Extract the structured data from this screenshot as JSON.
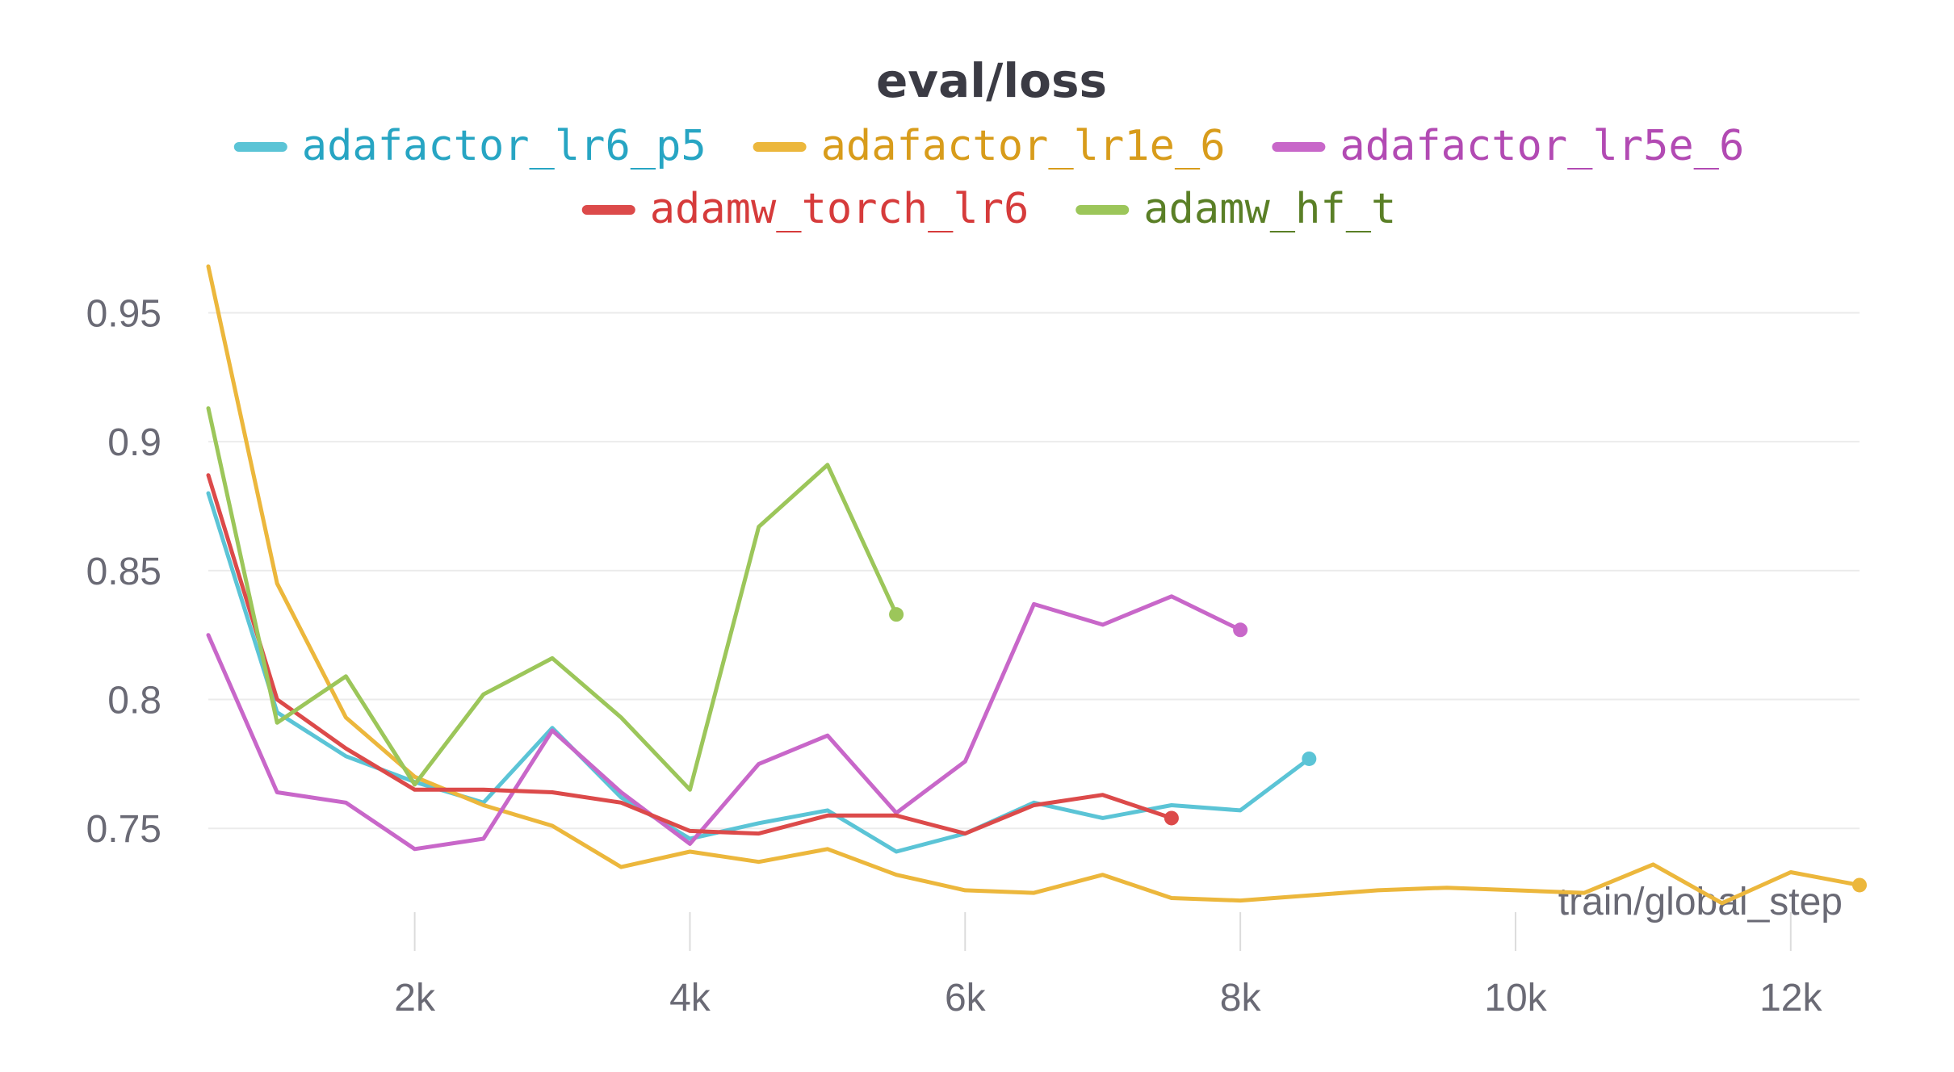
{
  "chart_data": {
    "type": "line",
    "title": "eval/loss",
    "xlabel": "train/global_step",
    "ylabel": "",
    "xlim": [
      500,
      12500
    ],
    "ylim": [
      0.715,
      0.968
    ],
    "x_ticks": [
      {
        "value": 2000,
        "label": "2k"
      },
      {
        "value": 4000,
        "label": "4k"
      },
      {
        "value": 6000,
        "label": "6k"
      },
      {
        "value": 8000,
        "label": "8k"
      },
      {
        "value": 10000,
        "label": "10k"
      },
      {
        "value": 12000,
        "label": "12k"
      }
    ],
    "y_ticks": [
      {
        "value": 0.75,
        "label": "0.75"
      },
      {
        "value": 0.8,
        "label": "0.8"
      },
      {
        "value": 0.85,
        "label": "0.85"
      },
      {
        "value": 0.9,
        "label": "0.9"
      },
      {
        "value": 0.95,
        "label": "0.95"
      }
    ],
    "grid": true,
    "legend_position": "top",
    "series": [
      {
        "name": "adafactor_lr6_p5",
        "color": "#5bc4d6",
        "text_color": "#27a5c3",
        "x": [
          500,
          1000,
          1500,
          2000,
          2500,
          3000,
          3500,
          4000,
          4500,
          5000,
          5500,
          6000,
          6500,
          7000,
          7500,
          8000,
          8500
        ],
        "y": [
          0.88,
          0.795,
          0.778,
          0.768,
          0.76,
          0.789,
          0.762,
          0.746,
          0.752,
          0.757,
          0.741,
          0.748,
          0.76,
          0.754,
          0.759,
          0.757,
          0.777
        ]
      },
      {
        "name": "adafactor_lr1e_6",
        "color": "#ecb73c",
        "text_color": "#d89c1b",
        "x": [
          500,
          1000,
          1500,
          2000,
          2500,
          3000,
          3500,
          4000,
          4500,
          5000,
          5500,
          6000,
          6500,
          7000,
          7500,
          8000,
          8500,
          9000,
          9500,
          10000,
          10500,
          11000,
          11500,
          12000,
          12500
        ],
        "y": [
          0.968,
          0.845,
          0.793,
          0.77,
          0.759,
          0.751,
          0.735,
          0.741,
          0.737,
          0.742,
          0.732,
          0.726,
          0.725,
          0.732,
          0.723,
          0.722,
          0.724,
          0.726,
          0.727,
          0.726,
          0.725,
          0.736,
          0.721,
          0.733,
          0.728
        ]
      },
      {
        "name": "adafactor_lr5e_6",
        "color": "#c867c9",
        "text_color": "#b24ab3",
        "x": [
          500,
          1000,
          1500,
          2000,
          2500,
          3000,
          3500,
          4000,
          4500,
          5000,
          5500,
          6000,
          6500,
          7000,
          7500,
          8000
        ],
        "y": [
          0.825,
          0.764,
          0.76,
          0.742,
          0.746,
          0.788,
          0.764,
          0.744,
          0.775,
          0.786,
          0.756,
          0.776,
          0.837,
          0.829,
          0.84,
          0.827
        ]
      },
      {
        "name": "adamw_torch_lr6",
        "color": "#dc4a4a",
        "text_color": "#d63b3b",
        "x": [
          500,
          1000,
          1500,
          2000,
          2500,
          3000,
          3500,
          4000,
          4500,
          5000,
          5500,
          6000,
          6500,
          7000,
          7500
        ],
        "y": [
          0.887,
          0.8,
          0.781,
          0.765,
          0.765,
          0.764,
          0.76,
          0.749,
          0.748,
          0.755,
          0.755,
          0.748,
          0.759,
          0.763,
          0.754
        ]
      },
      {
        "name": "adamw_hf_t",
        "color": "#9cc65a",
        "text_color": "#5a7f26",
        "x": [
          500,
          1000,
          1500,
          2000,
          2500,
          3000,
          3500,
          4000,
          4500,
          5000,
          5500
        ],
        "y": [
          0.913,
          0.791,
          0.809,
          0.767,
          0.802,
          0.816,
          0.793,
          0.765,
          0.867,
          0.891,
          0.833
        ]
      }
    ]
  }
}
